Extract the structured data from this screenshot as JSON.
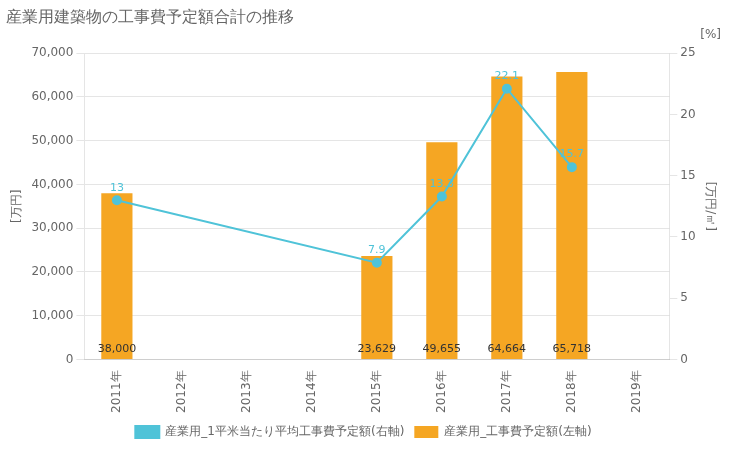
{
  "chart_data": {
    "type": "bar",
    "title": "産業用建築物の工事費予定額合計の推移",
    "ylabel": "[万円]",
    "y2label": "[万円/㎡]",
    "annotations": [
      {
        "text": "[%]"
      }
    ],
    "categories": [
      "2011年",
      "2012年",
      "2013年",
      "2014年",
      "2015年",
      "2016年",
      "2017年",
      "2018年",
      "2019年"
    ],
    "series": [
      {
        "name": "産業用_工事費予定額(左軸)",
        "type": "bar",
        "color": "#F5A623",
        "values": [
          38000,
          0,
          0,
          0,
          23629,
          49655,
          64664,
          65718,
          0
        ],
        "data_labels": true,
        "value_labels": [
          "38,000",
          null,
          null,
          null,
          "23,629",
          "49,655",
          "64,664",
          "65,718",
          null
        ]
      },
      {
        "name": "産業用_1平米当たり平均工事費予定額(右軸)",
        "type": "line",
        "axis": "y2",
        "color": "#4FC3D8",
        "marker": "circle",
        "values": [
          13,
          null,
          null,
          null,
          7.9,
          13.3,
          22.1,
          15.7,
          null
        ],
        "data_labels": true
      }
    ],
    "ylim": [
      0,
      70000
    ],
    "yticks": [
      0,
      {
        "value": 10000,
        "label": "10,000"
      },
      {
        "value": 20000,
        "label": "20,000"
      },
      {
        "value": 30000,
        "label": "30,000"
      },
      {
        "value": 40000,
        "label": "40,000"
      },
      {
        "value": 50000,
        "label": "50,000"
      },
      {
        "value": 60000,
        "label": "60,000"
      },
      {
        "value": 70000,
        "label": "70,000"
      }
    ],
    "y2lim": [
      0,
      25
    ],
    "y2ticks": [
      0,
      5,
      10,
      15,
      20,
      25
    ],
    "grid": "y",
    "legend": "bottom"
  }
}
